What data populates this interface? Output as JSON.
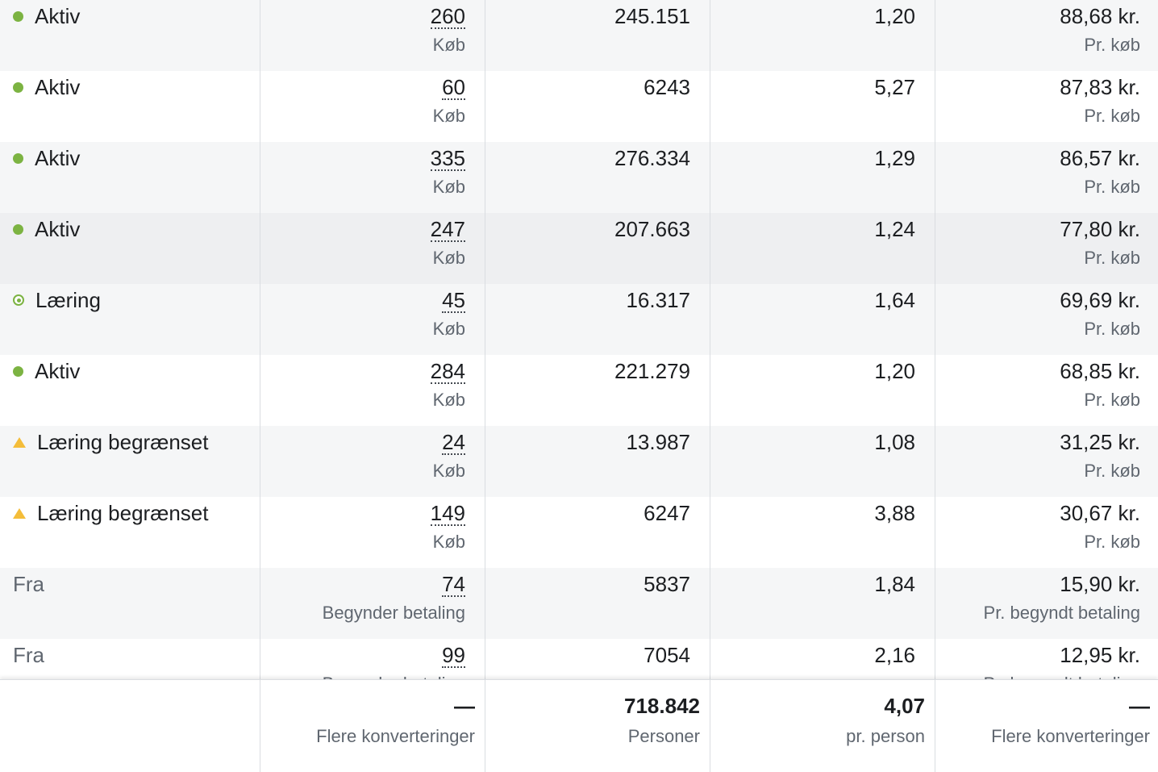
{
  "rows": [
    {
      "status": "Aktiv",
      "status_icon": "active-dot-icon",
      "results": "260",
      "result_type": "Køb",
      "reach": "245.151",
      "frequency": "1,20",
      "cost": "88,68 kr.",
      "cost_label": "Pr. køb"
    },
    {
      "status": "Aktiv",
      "status_icon": "active-dot-icon",
      "results": "60",
      "result_type": "Køb",
      "reach": "6243",
      "frequency": "5,27",
      "cost": "87,83 kr.",
      "cost_label": "Pr. køb"
    },
    {
      "status": "Aktiv",
      "status_icon": "active-dot-icon",
      "results": "335",
      "result_type": "Køb",
      "reach": "276.334",
      "frequency": "1,29",
      "cost": "86,57 kr.",
      "cost_label": "Pr. køb"
    },
    {
      "status": "Aktiv",
      "status_icon": "active-dot-icon",
      "results": "247",
      "result_type": "Køb",
      "reach": "207.663",
      "frequency": "1,24",
      "cost": "77,80 kr.",
      "cost_label": "Pr. køb"
    },
    {
      "status": "Læring",
      "status_icon": "learning-ring-icon",
      "results": "45",
      "result_type": "Køb",
      "reach": "16.317",
      "frequency": "1,64",
      "cost": "69,69 kr.",
      "cost_label": "Pr. køb"
    },
    {
      "status": "Aktiv",
      "status_icon": "active-dot-icon",
      "results": "284",
      "result_type": "Køb",
      "reach": "221.279",
      "frequency": "1,20",
      "cost": "68,85 kr.",
      "cost_label": "Pr. køb"
    },
    {
      "status": "Læring begrænset",
      "status_icon": "warning-triangle-icon",
      "results": "24",
      "result_type": "Køb",
      "reach": "13.987",
      "frequency": "1,08",
      "cost": "31,25 kr.",
      "cost_label": "Pr. køb"
    },
    {
      "status": "Læring begrænset",
      "status_icon": "warning-triangle-icon",
      "results": "149",
      "result_type": "Køb",
      "reach": "6247",
      "frequency": "3,88",
      "cost": "30,67 kr.",
      "cost_label": "Pr. køb"
    },
    {
      "status": "Fra",
      "status_icon": "",
      "results": "74",
      "result_type": "Begynder betaling",
      "reach": "5837",
      "frequency": "1,84",
      "cost": "15,90 kr.",
      "cost_label": "Pr. begyndt betaling"
    },
    {
      "status": "Fra",
      "status_icon": "",
      "results": "99",
      "result_type": "Begynder betaling",
      "reach": "7054",
      "frequency": "2,16",
      "cost": "12,95 kr.",
      "cost_label": "Pr. begyndt betaling"
    }
  ],
  "footer": {
    "results": "—",
    "results_label": "Flere konverteringer",
    "reach": "718.842",
    "reach_label": "Personer",
    "frequency": "4,07",
    "frequency_label": "pr. person",
    "cost": "—",
    "cost_label": "Flere konverteringer"
  },
  "colors": {
    "active": "#7cb342",
    "warning": "#f4bd3a",
    "stripe": "#f5f6f7",
    "border": "#dadde1"
  }
}
